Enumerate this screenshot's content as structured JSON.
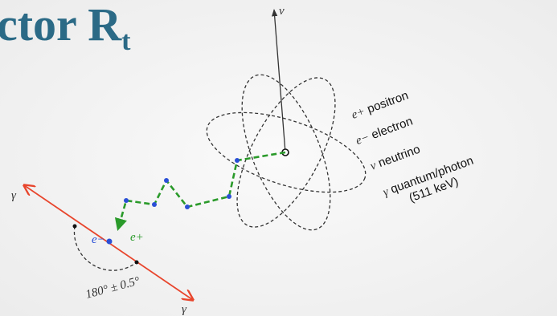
{
  "title": {
    "text": "ctor R",
    "subscript": "t"
  },
  "axis_label": "ν",
  "legend": [
    {
      "symbol": "e+",
      "label": "positron"
    },
    {
      "symbol": "e−",
      "label": "electron"
    },
    {
      "symbol": "ν",
      "label": "neutrino"
    },
    {
      "symbol": "γ",
      "label": "quantum/photon",
      "note": "(511 keV)"
    }
  ],
  "figure_labels": {
    "gamma_left": "γ",
    "gamma_right": "γ",
    "positron": "e+",
    "electron": "e−",
    "angle": "180° ± 0.5°"
  }
}
